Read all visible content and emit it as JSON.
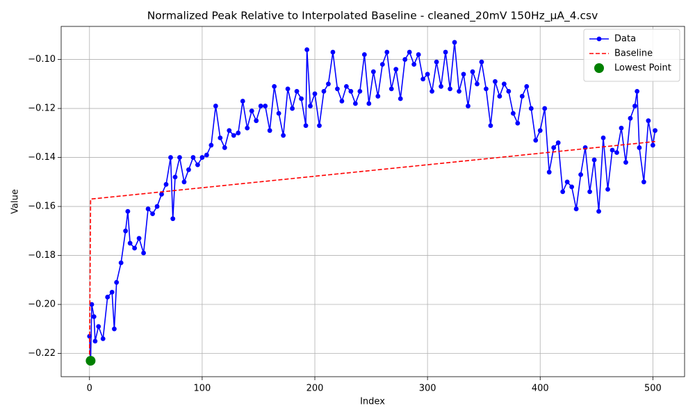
{
  "chart_data": {
    "type": "line",
    "title": "Normalized Peak Relative to Interpolated Baseline - cleaned_20mV 150Hz_µA_4.csv",
    "x_label": "Index",
    "y_label": "Value",
    "xlim": [
      -25.15,
      528.15
    ],
    "ylim": [
      -0.2295,
      -0.0865
    ],
    "xticks": [
      0,
      100,
      200,
      300,
      400,
      500
    ],
    "yticks": [
      {
        "value": -0.22,
        "label": "−0.22"
      },
      {
        "value": -0.2,
        "label": "−0.20"
      },
      {
        "value": -0.18,
        "label": "−0.18"
      },
      {
        "value": -0.16,
        "label": "−0.16"
      },
      {
        "value": -0.14,
        "label": "−0.14"
      },
      {
        "value": -0.12,
        "label": "−0.12"
      },
      {
        "value": -0.1,
        "label": "−0.10"
      }
    ],
    "grid": true,
    "legend": "upper right",
    "series": [
      {
        "name": "Data",
        "color": "#0000ff",
        "linestyle": "solid",
        "marker": "circle",
        "x": [
          0,
          1,
          2,
          4,
          5,
          8,
          12,
          16,
          20,
          22,
          24,
          28,
          32,
          34,
          36,
          40,
          44,
          48,
          52,
          56,
          60,
          64,
          68,
          72,
          74,
          76,
          80,
          84,
          88,
          92,
          96,
          100,
          104,
          108,
          112,
          116,
          120,
          124,
          128,
          132,
          136,
          140,
          144,
          148,
          152,
          156,
          160,
          164,
          168,
          172,
          176,
          180,
          184,
          188,
          192,
          193,
          196,
          200,
          204,
          208,
          212,
          216,
          220,
          224,
          228,
          232,
          236,
          240,
          244,
          248,
          252,
          256,
          260,
          264,
          268,
          272,
          276,
          280,
          284,
          288,
          292,
          296,
          300,
          304,
          308,
          312,
          316,
          320,
          324,
          328,
          332,
          336,
          340,
          344,
          348,
          352,
          356,
          360,
          364,
          368,
          372,
          376,
          380,
          384,
          388,
          392,
          396,
          400,
          404,
          408,
          412,
          416,
          420,
          424,
          428,
          432,
          436,
          440,
          444,
          448,
          452,
          456,
          460,
          464,
          468,
          472,
          476,
          480,
          484,
          486,
          488,
          492,
          496,
          500,
          502
        ],
        "values": [
          -0.213,
          -0.223,
          -0.2,
          -0.205,
          -0.215,
          -0.209,
          -0.214,
          -0.197,
          -0.195,
          -0.21,
          -0.191,
          -0.183,
          -0.17,
          -0.162,
          -0.175,
          -0.177,
          -0.173,
          -0.179,
          -0.161,
          -0.163,
          -0.16,
          -0.155,
          -0.151,
          -0.14,
          -0.165,
          -0.148,
          -0.14,
          -0.15,
          -0.145,
          -0.14,
          -0.143,
          -0.14,
          -0.139,
          -0.135,
          -0.119,
          -0.132,
          -0.136,
          -0.129,
          -0.131,
          -0.13,
          -0.117,
          -0.128,
          -0.121,
          -0.125,
          -0.119,
          -0.119,
          -0.129,
          -0.111,
          -0.122,
          -0.131,
          -0.112,
          -0.12,
          -0.113,
          -0.116,
          -0.127,
          -0.096,
          -0.119,
          -0.114,
          -0.127,
          -0.113,
          -0.11,
          -0.097,
          -0.112,
          -0.117,
          -0.111,
          -0.113,
          -0.118,
          -0.113,
          -0.098,
          -0.118,
          -0.105,
          -0.115,
          -0.102,
          -0.097,
          -0.112,
          -0.104,
          -0.116,
          -0.1,
          -0.097,
          -0.102,
          -0.098,
          -0.108,
          -0.106,
          -0.113,
          -0.101,
          -0.111,
          -0.097,
          -0.112,
          -0.093,
          -0.113,
          -0.106,
          -0.119,
          -0.105,
          -0.11,
          -0.101,
          -0.112,
          -0.127,
          -0.109,
          -0.115,
          -0.11,
          -0.113,
          -0.122,
          -0.126,
          -0.115,
          -0.111,
          -0.12,
          -0.133,
          -0.129,
          -0.12,
          -0.146,
          -0.136,
          -0.134,
          -0.154,
          -0.15,
          -0.152,
          -0.161,
          -0.147,
          -0.136,
          -0.154,
          -0.141,
          -0.162,
          -0.132,
          -0.153,
          -0.137,
          -0.138,
          -0.128,
          -0.142,
          -0.124,
          -0.119,
          -0.113,
          -0.136,
          -0.15,
          -0.125,
          -0.135,
          -0.129
        ]
      },
      {
        "name": "Baseline",
        "color": "#ff0000",
        "linestyle": "dashed",
        "marker": "none",
        "x": [
          0,
          1,
          502
        ],
        "values": [
          -0.223,
          -0.157,
          -0.1335
        ]
      },
      {
        "name": "Lowest Point",
        "color": "#008000",
        "linestyle": "none",
        "marker": "circle",
        "x": [
          1
        ],
        "values": [
          -0.223
        ]
      }
    ]
  }
}
